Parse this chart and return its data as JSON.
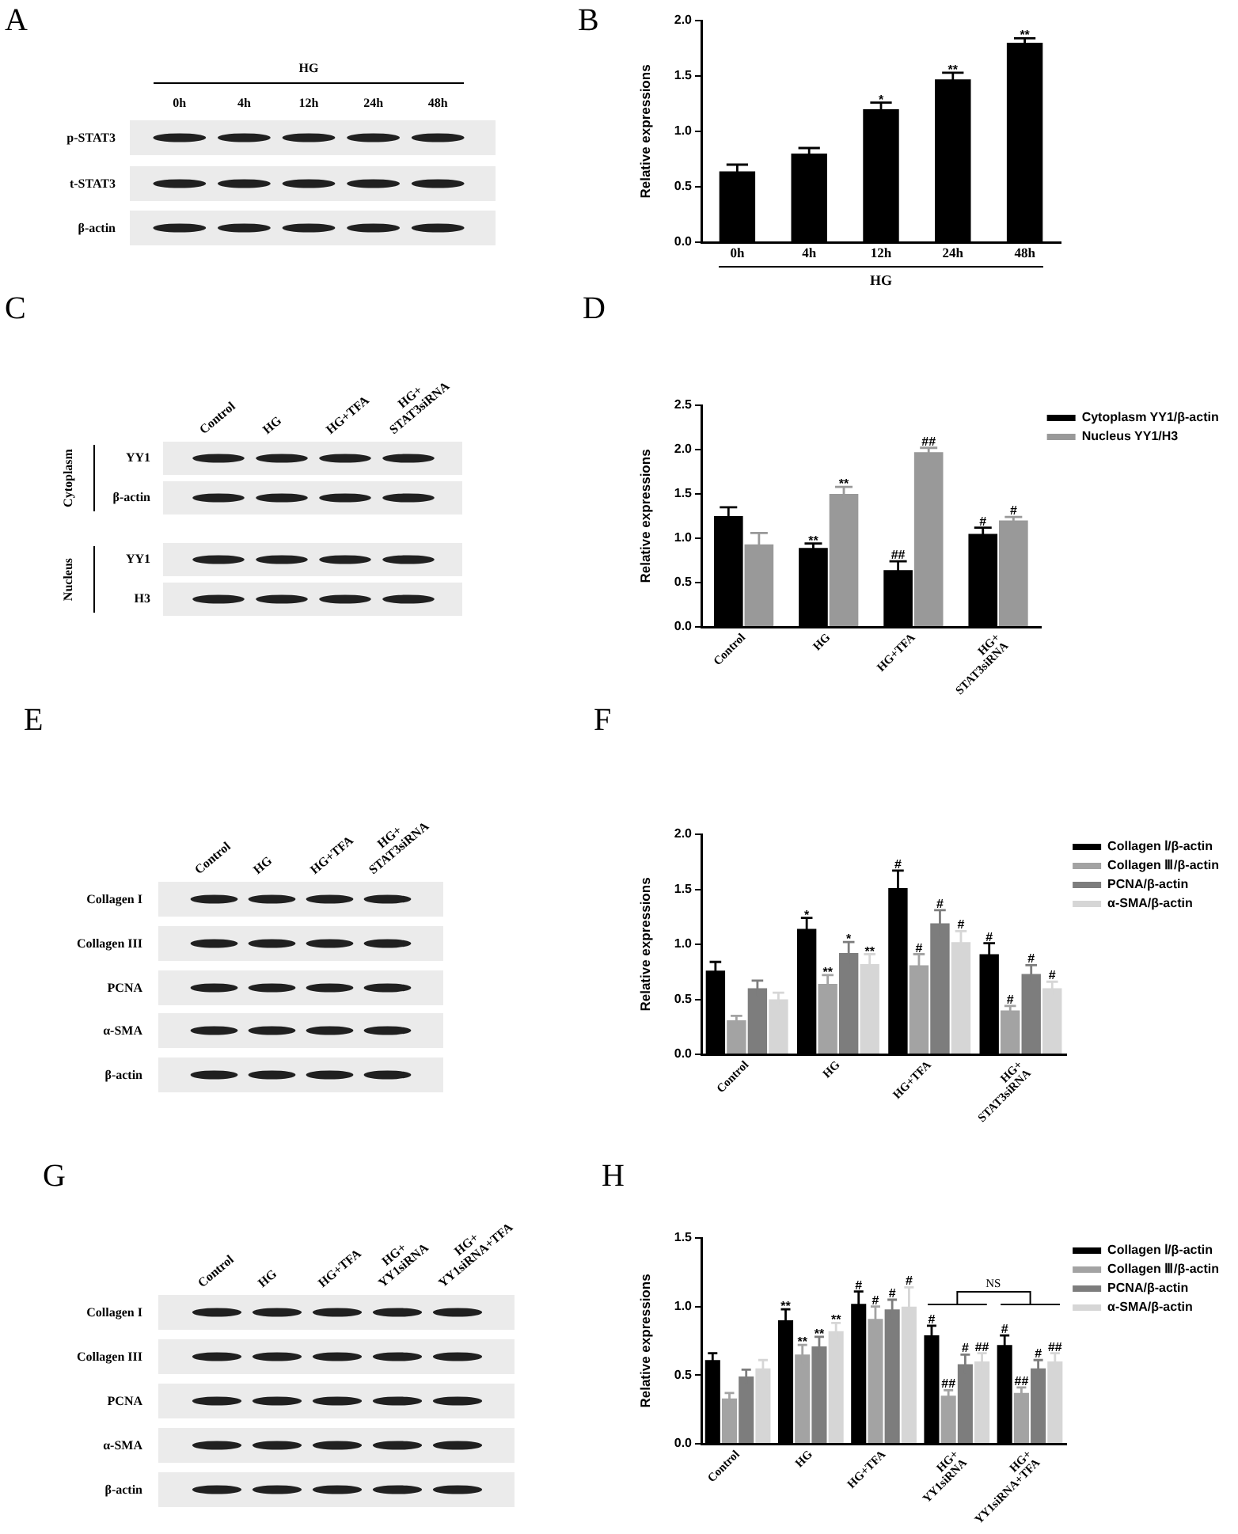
{
  "chart_data": [
    {
      "type": "other",
      "title": "A",
      "xlabel": "HG",
      "categories": [
        "0h",
        "4h",
        "12h",
        "24h",
        "48h"
      ],
      "y_categories": [
        "p-STAT3",
        "t-STAT3",
        "β-actin"
      ]
    },
    {
      "type": "bar",
      "title": "B",
      "categories": [
        "0h",
        "4h",
        "12h",
        "24h",
        "48h"
      ],
      "values": [
        0.64,
        0.8,
        1.2,
        1.47,
        1.8
      ],
      "errors": [
        0.06,
        0.05,
        0.06,
        0.06,
        0.04
      ],
      "value_labels": [
        null,
        null,
        "*",
        "**",
        "**"
      ],
      "color": "#000000",
      "xlabel": "HG",
      "ylabel": "Relative expressions",
      "ylim": [
        0,
        2
      ],
      "yticks": [
        {
          "value": 0,
          "label": "0.0"
        },
        0.5,
        {
          "value": 1,
          "label": "1.0"
        },
        1.5,
        {
          "value": 2,
          "label": "2.0"
        }
      ]
    },
    {
      "type": "other",
      "title": "C",
      "categories": [
        "Control",
        "HG",
        "HG+TFA",
        "HG+ STAT3siRNA"
      ],
      "y_categories": [
        "YY1",
        "β-actin",
        "YY1",
        "H3"
      ],
      "annotations": [
        "Cytoplasm",
        "Nucleus"
      ]
    },
    {
      "type": "bar",
      "title": "D",
      "categories": [
        "Control",
        "HG",
        "HG+TFA",
        "HG+ STAT3siRNA"
      ],
      "ylabel": "Relative expressions",
      "ylim": [
        0,
        2.5
      ],
      "yticks": [
        {
          "value": 0,
          "label": "0.0"
        },
        0.5,
        {
          "value": 1,
          "label": "1.0"
        },
        1.5,
        {
          "value": 2,
          "label": "2.0"
        },
        2.5
      ],
      "legend": "top right",
      "series": [
        {
          "name": "Cytoplasm YY1/β-actin",
          "color": "#000000",
          "values": [
            1.25,
            0.89,
            0.64,
            1.05
          ],
          "errors": [
            0.1,
            0.05,
            0.1,
            0.07
          ],
          "value_labels": [
            null,
            "**",
            "##",
            "#"
          ]
        },
        {
          "name": "Nucleus YY1/H3",
          "color": "#999999",
          "values": [
            0.93,
            1.5,
            1.97,
            1.2
          ],
          "errors": [
            0.13,
            0.08,
            0.05,
            0.04
          ],
          "value_labels": [
            null,
            "**",
            "##",
            "#"
          ]
        }
      ]
    },
    {
      "type": "other",
      "title": "E",
      "categories": [
        "Control",
        "HG",
        "HG+TFA",
        "HG+ STAT3siRNA"
      ],
      "y_categories": [
        "Collagen I",
        "Collagen III",
        "PCNA",
        "α-SMA",
        "β-actin"
      ]
    },
    {
      "type": "bar",
      "title": "F",
      "categories": [
        "Control",
        "HG",
        "HG+TFA",
        "HG+ STAT3siRNA"
      ],
      "ylabel": "Relative expressions",
      "ylim": [
        0,
        2
      ],
      "yticks": [
        {
          "value": 0,
          "label": "0.0"
        },
        0.5,
        {
          "value": 1,
          "label": "1.0"
        },
        1.5,
        {
          "value": 2,
          "label": "2.0"
        }
      ],
      "legend": "top right",
      "series": [
        {
          "name": "Collagen Ⅰ/β-actin",
          "color": "#000000",
          "values": [
            0.76,
            1.14,
            1.51,
            0.91
          ],
          "errors": [
            0.08,
            0.1,
            0.16,
            0.1
          ],
          "value_labels": [
            null,
            "*",
            "#",
            "#"
          ]
        },
        {
          "name": "Collagen Ⅲ/β-actin",
          "color": "#a3a3a3",
          "values": [
            0.31,
            0.64,
            0.81,
            0.4
          ],
          "errors": [
            0.04,
            0.08,
            0.1,
            0.04
          ],
          "value_labels": [
            null,
            "**",
            "#",
            "#"
          ]
        },
        {
          "name": "PCNA/β-actin",
          "color": "#7d7d7d",
          "values": [
            0.6,
            0.92,
            1.19,
            0.73
          ],
          "errors": [
            0.07,
            0.1,
            0.12,
            0.08
          ],
          "value_labels": [
            null,
            "*",
            "#",
            "#"
          ]
        },
        {
          "name": "α-SMA/β-actin",
          "color": "#d6d6d6",
          "values": [
            0.5,
            0.82,
            1.02,
            0.6
          ],
          "errors": [
            0.06,
            0.09,
            0.1,
            0.06
          ],
          "value_labels": [
            null,
            "**",
            "#",
            "#"
          ]
        }
      ]
    },
    {
      "type": "other",
      "title": "G",
      "categories": [
        "Control",
        "HG",
        "HG+TFA",
        "HG+ YY1siRNA",
        "HG+ YY1siRNA+TFA"
      ],
      "y_categories": [
        "Collagen I",
        "Collagen III",
        "PCNA",
        "α-SMA",
        "β-actin"
      ]
    },
    {
      "type": "bar",
      "title": "H",
      "categories": [
        "Control",
        "HG",
        "HG+TFA",
        "HG+ YY1siRNA",
        "HG+ YY1siRNA+TFA"
      ],
      "ylabel": "Relative expressions",
      "ylim": [
        0,
        1.5
      ],
      "yticks": [
        {
          "value": 0,
          "label": "0.0"
        },
        0.5,
        {
          "value": 1,
          "label": "1.0"
        },
        1.5
      ],
      "legend": "top right",
      "annotations": [
        "NS"
      ],
      "series": [
        {
          "name": "Collagen Ⅰ/β-actin",
          "color": "#000000",
          "values": [
            0.61,
            0.9,
            1.02,
            0.79,
            0.72
          ],
          "errors": [
            0.05,
            0.08,
            0.09,
            0.07,
            0.07
          ],
          "value_labels": [
            null,
            "**",
            "#",
            "#",
            "#"
          ]
        },
        {
          "name": "Collagen Ⅲ/β-actin",
          "color": "#a3a3a3",
          "values": [
            0.33,
            0.65,
            0.91,
            0.35,
            0.37
          ],
          "errors": [
            0.04,
            0.07,
            0.09,
            0.04,
            0.04
          ],
          "value_labels": [
            null,
            "**",
            "#",
            "##",
            "##"
          ]
        },
        {
          "name": "PCNA/β-actin",
          "color": "#7d7d7d",
          "values": [
            0.49,
            0.71,
            0.98,
            0.58,
            0.55
          ],
          "errors": [
            0.05,
            0.07,
            0.07,
            0.07,
            0.06
          ],
          "value_labels": [
            null,
            "**",
            "#",
            "#",
            "#"
          ]
        },
        {
          "name": "α-SMA/β-actin",
          "color": "#d6d6d6",
          "values": [
            0.55,
            0.82,
            1.0,
            0.6,
            0.6
          ],
          "errors": [
            0.06,
            0.06,
            0.14,
            0.06,
            0.06
          ],
          "value_labels": [
            null,
            "**",
            "#",
            "##",
            "##"
          ]
        }
      ]
    }
  ]
}
